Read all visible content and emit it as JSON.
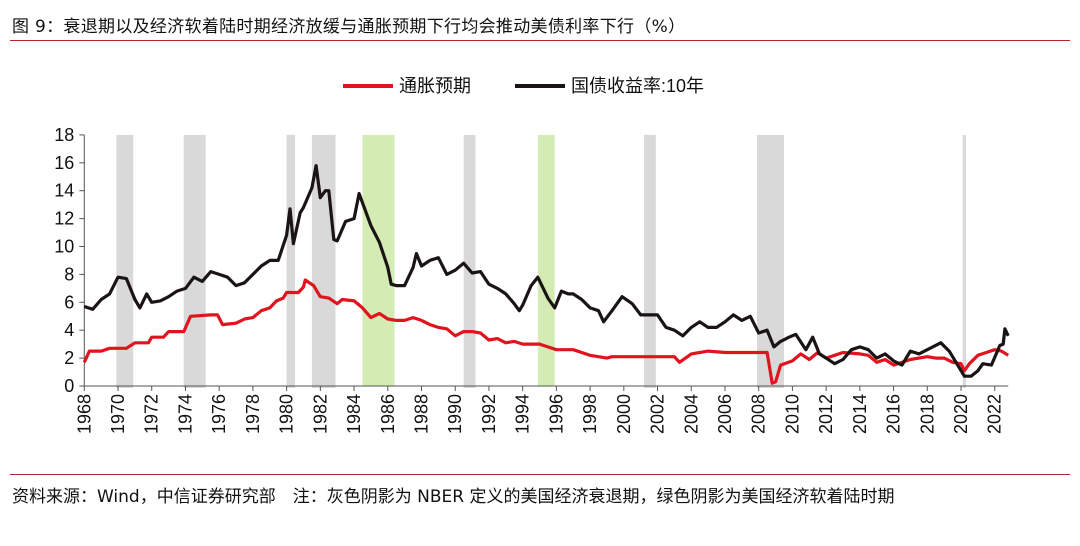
{
  "title": "图 9：衰退期以及经济软着陆时期经济放缓与通胀预期下行均会推动美债利率下行（%）",
  "footer": "资料来源：Wind，中信证券研究部　注：灰色阴影为 NBER 定义的美国经济衰退期，绿色阴影为美国经济软着陆时期",
  "chart_data": {
    "type": "line",
    "title": "",
    "xlabel": "",
    "ylabel": "",
    "ylim": [
      0,
      18
    ],
    "yticks": [
      "0",
      "2",
      "4",
      "6",
      "8",
      "10",
      "12",
      "14",
      "16",
      "18"
    ],
    "xlim": [
      1968,
      2022.8
    ],
    "xticks": [
      "1968",
      "1970",
      "1972",
      "1974",
      "1976",
      "1978",
      "1980",
      "1982",
      "1984",
      "1986",
      "1988",
      "1990",
      "1992",
      "1994",
      "1996",
      "1998",
      "2000",
      "2002",
      "2004",
      "2006",
      "2008",
      "2010",
      "2012",
      "2014",
      "2016",
      "2018",
      "2020",
      "2022"
    ],
    "grid": false,
    "legend_position": "top",
    "recession_shading_color": "#d9d9d9",
    "soft_landing_shading_color": "#d4ebb4",
    "recessions": [
      [
        1969.9,
        1970.9
      ],
      [
        1973.9,
        1975.2
      ],
      [
        1980.0,
        1980.5
      ],
      [
        1981.5,
        1982.9
      ],
      [
        1990.5,
        1991.2
      ],
      [
        2001.2,
        2001.9
      ],
      [
        2007.9,
        2009.5
      ],
      [
        2020.1,
        2020.3
      ]
    ],
    "soft_landings": [
      [
        1984.5,
        1986.4
      ],
      [
        1994.9,
        1995.9
      ]
    ],
    "series": [
      {
        "name": "通胀预期",
        "color": "#e0141e",
        "x": [
          1968,
          1968.3,
          1969,
          1969.5,
          1970.5,
          1971,
          1971.8,
          1972,
          1972.7,
          1973,
          1973.9,
          1974.3,
          1975.5,
          1975.9,
          1976.2,
          1977,
          1977.5,
          1978,
          1978.5,
          1979,
          1979.4,
          1979.8,
          1980,
          1980.7,
          1981,
          1981.1,
          1981.6,
          1982,
          1982.5,
          1983,
          1983.3,
          1984,
          1984.5,
          1985,
          1985.5,
          1986,
          1986.5,
          1987,
          1987.5,
          1988,
          1988.5,
          1989,
          1989.5,
          1990,
          1990.5,
          1991,
          1991.5,
          1992,
          1992.5,
          1993,
          1993.5,
          1994,
          1995,
          1995.5,
          1996,
          1997,
          1997.5,
          1998,
          1998.5,
          1999,
          1999.3,
          2001,
          2003,
          2003.3,
          2004,
          2005,
          2006,
          2007,
          2008,
          2008.5,
          2008.8,
          2009,
          2009.3,
          2010,
          2010.5,
          2011,
          2011.5,
          2012,
          2012.5,
          2013,
          2014,
          2014.5,
          2015,
          2015.5,
          2016,
          2016.5,
          2017,
          2017.5,
          2018,
          2018.5,
          2019,
          2019.5,
          2020,
          2020.2,
          2020.5,
          2021,
          2021.5,
          2022,
          2022.4,
          2022.8
        ],
        "values": [
          1.7,
          2.5,
          2.5,
          2.7,
          2.7,
          3.1,
          3.1,
          3.5,
          3.5,
          3.9,
          3.9,
          5.0,
          5.1,
          5.1,
          4.4,
          4.5,
          4.8,
          4.9,
          5.4,
          5.6,
          6.1,
          6.3,
          6.7,
          6.7,
          7.1,
          7.6,
          7.2,
          6.4,
          6.3,
          5.9,
          6.2,
          6.1,
          5.6,
          4.9,
          5.2,
          4.8,
          4.7,
          4.7,
          4.9,
          4.7,
          4.4,
          4.2,
          4.1,
          3.6,
          3.9,
          3.9,
          3.8,
          3.3,
          3.4,
          3.1,
          3.2,
          3.0,
          3.0,
          2.8,
          2.6,
          2.6,
          2.4,
          2.2,
          2.1,
          2.0,
          2.1,
          2.1,
          2.1,
          1.7,
          2.3,
          2.5,
          2.4,
          2.4,
          2.4,
          2.4,
          0.2,
          0.3,
          1.5,
          1.8,
          2.3,
          1.9,
          2.4,
          2.0,
          2.2,
          2.4,
          2.3,
          2.2,
          1.7,
          1.9,
          1.5,
          1.7,
          1.9,
          2.0,
          2.1,
          2.0,
          2.0,
          1.7,
          1.6,
          1.1,
          1.6,
          2.2,
          2.4,
          2.6,
          2.5,
          2.2
        ]
      },
      {
        "name": "国债收益率:10年",
        "color": "#1a1414",
        "x": [
          1968,
          1968.5,
          1969,
          1969.5,
          1970,
          1970.5,
          1971,
          1971.3,
          1971.7,
          1972,
          1972.5,
          1973,
          1973.5,
          1974,
          1974.5,
          1975,
          1975.5,
          1976,
          1976.5,
          1977,
          1977.5,
          1978,
          1978.5,
          1979,
          1979.5,
          1980,
          1980.2,
          1980.4,
          1980.8,
          1981,
          1981.5,
          1981.75,
          1982,
          1982.3,
          1982.5,
          1982.8,
          1983,
          1983.5,
          1984,
          1984.3,
          1984.6,
          1985,
          1985.5,
          1986,
          1986.2,
          1986.5,
          1987,
          1987.5,
          1987.7,
          1988,
          1988.5,
          1989,
          1989.5,
          1990,
          1990.5,
          1991,
          1991.5,
          1992,
          1992.5,
          1993,
          1993.5,
          1993.8,
          1994,
          1994.5,
          1994.9,
          1995.5,
          1995.9,
          1996.3,
          1996.7,
          1997,
          1997.5,
          1998,
          1998.5,
          1998.8,
          1999.3,
          1999.9,
          2000.5,
          2001,
          2001.5,
          2002,
          2002.5,
          2003,
          2003.5,
          2004,
          2004.5,
          2005,
          2005.5,
          2006,
          2006.5,
          2007,
          2007.5,
          2008,
          2008.5,
          2008.9,
          2009.3,
          2009.8,
          2010.2,
          2010.8,
          2011.2,
          2011.6,
          2012,
          2012.5,
          2013,
          2013.5,
          2014,
          2014.5,
          2015,
          2015.5,
          2016,
          2016.5,
          2017,
          2017.5,
          2018,
          2018.8,
          2019.3,
          2019.7,
          2020.2,
          2020.6,
          2021,
          2021.3,
          2021.8,
          2022.3,
          2022.5,
          2022.6,
          2022.8
        ],
        "values": [
          5.7,
          5.5,
          6.2,
          6.6,
          7.8,
          7.7,
          6.2,
          5.6,
          6.6,
          6.0,
          6.1,
          6.4,
          6.8,
          7.0,
          7.8,
          7.5,
          8.2,
          8.0,
          7.8,
          7.2,
          7.4,
          8.0,
          8.6,
          9.0,
          9.0,
          10.8,
          12.7,
          10.2,
          12.4,
          12.8,
          14.2,
          15.8,
          13.5,
          14.0,
          14.0,
          10.5,
          10.4,
          11.8,
          12.0,
          13.8,
          12.8,
          11.5,
          10.3,
          8.5,
          7.3,
          7.2,
          7.2,
          8.5,
          9.5,
          8.6,
          9.0,
          9.2,
          8.0,
          8.3,
          8.8,
          8.1,
          8.2,
          7.3,
          7.0,
          6.6,
          5.9,
          5.4,
          5.8,
          7.2,
          7.8,
          6.3,
          5.6,
          6.8,
          6.6,
          6.6,
          6.2,
          5.6,
          5.4,
          4.6,
          5.4,
          6.4,
          5.9,
          5.1,
          5.1,
          5.1,
          4.2,
          4.0,
          3.6,
          4.2,
          4.6,
          4.2,
          4.2,
          4.6,
          5.1,
          4.7,
          5.0,
          3.8,
          4.0,
          2.8,
          3.2,
          3.5,
          3.7,
          2.6,
          3.5,
          2.3,
          2.0,
          1.6,
          1.9,
          2.6,
          2.8,
          2.6,
          2.0,
          2.3,
          1.8,
          1.5,
          2.5,
          2.3,
          2.6,
          3.1,
          2.5,
          1.7,
          0.7,
          0.7,
          1.1,
          1.6,
          1.5,
          2.9,
          3.0,
          4.1,
          3.6
        ]
      }
    ]
  }
}
